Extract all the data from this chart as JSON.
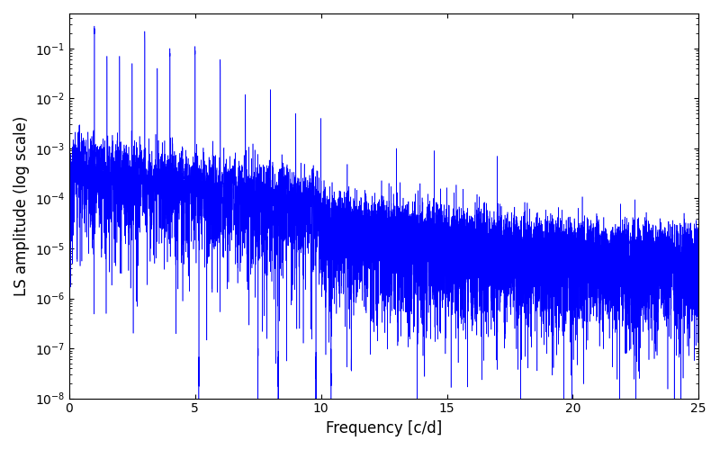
{
  "line_color": "#0000FF",
  "xlabel": "Frequency [c/d]",
  "ylabel": "LS amplitude (log scale)",
  "title": "",
  "xlim": [
    0,
    25
  ],
  "ylim": [
    1e-08,
    0.5
  ],
  "freq_min": 0.0,
  "freq_max": 25.0,
  "n_points": 15000,
  "background_color": "#ffffff",
  "figsize": [
    8.0,
    5.0
  ],
  "dpi": 100,
  "linewidth": 0.4
}
